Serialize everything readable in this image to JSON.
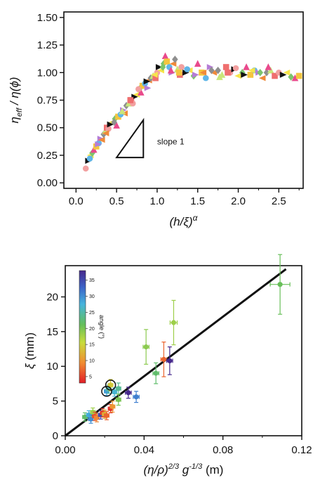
{
  "chart_data": [
    {
      "type": "scatter",
      "title": "",
      "xlabel": "(h/ξ)^α",
      "ylabel": "η_eff / η(φ)",
      "xlim": [
        -0.15,
        2.8
      ],
      "ylim": [
        -0.05,
        1.55
      ],
      "xticks": [
        "0.0",
        "0.5",
        "1.0",
        "1.5",
        "2.0",
        "2.5"
      ],
      "yticks": [
        "0.00",
        "0.25",
        "0.50",
        "0.75",
        "1.00",
        "1.25",
        "1.50"
      ],
      "grid": false,
      "legend": "none",
      "annotation": {
        "text": "slope 1",
        "triangle": {
          "x": [
            0.5,
            0.83,
            0.83
          ],
          "y": [
            0.23,
            0.23,
            0.57
          ]
        }
      },
      "series": [
        {
          "x": [
            0.12,
            0.15,
            0.18,
            0.2,
            0.22,
            0.25,
            0.28,
            0.3,
            0.32,
            0.34,
            0.36,
            0.38,
            0.4,
            0.42,
            0.45,
            0.48,
            0.5,
            0.52,
            0.55,
            0.58,
            0.6,
            0.62,
            0.65,
            0.68,
            0.7,
            0.72,
            0.75,
            0.78,
            0.8,
            0.82,
            0.85,
            0.88,
            0.9,
            0.92,
            0.95,
            0.98,
            1.0,
            1.02,
            1.05,
            1.08,
            1.1,
            1.12,
            1.15,
            1.18,
            1.2,
            1.22,
            1.25,
            1.28,
            1.3,
            1.35,
            1.4,
            1.45,
            1.5,
            1.55,
            1.6,
            1.65,
            1.7,
            1.75,
            1.8,
            1.85,
            1.9,
            1.95,
            2.0,
            2.05,
            2.1,
            2.15,
            2.2,
            2.25,
            2.3,
            2.35,
            2.4,
            2.45,
            2.5,
            2.55,
            2.6,
            2.65,
            2.7,
            2.75,
            0.17,
            0.27,
            0.37,
            0.47,
            0.57,
            0.67,
            0.77,
            0.87,
            0.97,
            1.07,
            1.17,
            1.27,
            1.37,
            1.47,
            1.57,
            1.67,
            1.77,
            1.87,
            1.97,
            2.07,
            2.17,
            2.27,
            2.37
          ],
          "y": [
            0.13,
            0.2,
            0.25,
            0.27,
            0.3,
            0.33,
            0.36,
            0.4,
            0.39,
            0.44,
            0.47,
            0.5,
            0.49,
            0.53,
            0.55,
            0.58,
            0.52,
            0.6,
            0.62,
            0.66,
            0.63,
            0.7,
            0.72,
            0.75,
            0.72,
            0.78,
            0.8,
            0.85,
            0.82,
            0.88,
            0.9,
            0.86,
            0.93,
            0.95,
            0.97,
            0.95,
            1.0,
            1.05,
            1.02,
            1.08,
            1.15,
            1.1,
            1.05,
            1.0,
            1.08,
            1.12,
            1.03,
            0.98,
            1.05,
            1.0,
            1.02,
            0.97,
            1.08,
            1.0,
            0.95,
            1.05,
            1.0,
            1.02,
            0.98,
            1.05,
            1.0,
            1.03,
            0.97,
            1.0,
            1.05,
            0.98,
            1.02,
            1.0,
            0.95,
            1.0,
            1.02,
            0.97,
            1.0,
            0.98,
            1.0,
            0.96,
            0.95,
            0.97,
            0.22,
            0.35,
            0.45,
            0.55,
            0.65,
            0.75,
            0.85,
            0.92,
            0.98,
            1.05,
            1.02,
            1.0,
            1.03,
            0.98,
            1.0,
            1.02,
            0.96,
            1.0,
            1.04,
            0.98,
            1.02,
            1.0,
            1.05
          ]
        }
      ]
    },
    {
      "type": "scatter",
      "title": "",
      "xlabel": "(η/ρ)^2/3 g^-1/3 (m)",
      "ylabel": "ξ (mm)",
      "xlim": [
        0.0,
        0.12
      ],
      "ylim": [
        0.0,
        24.5
      ],
      "xticks": [
        "0.00",
        "0.04",
        "0.08",
        "0.12"
      ],
      "yticks": [
        "0",
        "5",
        "10",
        "15",
        "20"
      ],
      "grid": false,
      "legend": "none",
      "colorbar": {
        "label": "angle (°)",
        "ticks": [
          "5",
          "10",
          "15",
          "20",
          "25",
          "30",
          "35"
        ],
        "range": [
          3,
          38
        ]
      },
      "fit_line": {
        "x": [
          0.0,
          0.112
        ],
        "y": [
          0.0,
          24.0
        ]
      },
      "points": [
        {
          "x": 0.01,
          "y": 2.7,
          "xerr": 0.0012,
          "yerr": 0.6,
          "angle": 22
        },
        {
          "x": 0.012,
          "y": 3.0,
          "xerr": 0.0012,
          "yerr": 0.6,
          "angle": 28
        },
        {
          "x": 0.013,
          "y": 2.4,
          "xerr": 0.0012,
          "yerr": 0.6,
          "angle": 30
        },
        {
          "x": 0.014,
          "y": 3.4,
          "xerr": 0.0012,
          "yerr": 0.6,
          "angle": 18
        },
        {
          "x": 0.015,
          "y": 2.8,
          "xerr": 0.0012,
          "yerr": 0.6,
          "angle": 6
        },
        {
          "x": 0.016,
          "y": 2.6,
          "xerr": 0.0012,
          "yerr": 0.6,
          "angle": 9
        },
        {
          "x": 0.018,
          "y": 3.0,
          "xerr": 0.0012,
          "yerr": 0.6,
          "angle": 35
        },
        {
          "x": 0.019,
          "y": 3.3,
          "xerr": 0.0012,
          "yerr": 0.6,
          "angle": 5
        },
        {
          "x": 0.02,
          "y": 3.1,
          "xerr": 0.0012,
          "yerr": 0.6,
          "angle": 12
        },
        {
          "x": 0.021,
          "y": 2.9,
          "xerr": 0.0012,
          "yerr": 0.6,
          "angle": 7
        },
        {
          "x": 0.023,
          "y": 3.9,
          "xerr": 0.0012,
          "yerr": 0.6,
          "angle": 4
        },
        {
          "x": 0.024,
          "y": 4.2,
          "xerr": 0.0012,
          "yerr": 0.8,
          "angle": 10
        },
        {
          "x": 0.021,
          "y": 6.4,
          "xerr": 0.0012,
          "yerr": 0.6,
          "angle": 29
        },
        {
          "x": 0.022,
          "y": 6.7,
          "xerr": 0.0012,
          "yerr": 0.6,
          "angle": 25
        },
        {
          "x": 0.023,
          "y": 7.3,
          "xerr": 0.0012,
          "yerr": 0.8,
          "angle": 14
        },
        {
          "x": 0.025,
          "y": 6.3,
          "xerr": 0.0012,
          "yerr": 0.6,
          "angle": 27
        },
        {
          "x": 0.027,
          "y": 6.8,
          "xerr": 0.0012,
          "yerr": 0.8,
          "angle": 24
        },
        {
          "x": 0.027,
          "y": 5.2,
          "xerr": 0.0012,
          "yerr": 0.8,
          "angle": 20
        },
        {
          "x": 0.032,
          "y": 6.2,
          "xerr": 0.0015,
          "yerr": 0.8,
          "angle": 38
        },
        {
          "x": 0.036,
          "y": 5.6,
          "xerr": 0.0015,
          "yerr": 0.8,
          "angle": 31
        },
        {
          "x": 0.041,
          "y": 12.8,
          "xerr": 0.0015,
          "yerr": 2.5,
          "angle": 19
        },
        {
          "x": 0.046,
          "y": 9.0,
          "xerr": 0.0015,
          "yerr": 1.5,
          "angle": 22
        },
        {
          "x": 0.05,
          "y": 11.0,
          "xerr": 0.0015,
          "yerr": 2.5,
          "angle": 7
        },
        {
          "x": 0.053,
          "y": 10.8,
          "xerr": 0.0015,
          "yerr": 2.0,
          "angle": 38
        },
        {
          "x": 0.055,
          "y": 16.3,
          "xerr": 0.0018,
          "yerr": 3.2,
          "angle": 18
        },
        {
          "x": 0.109,
          "y": 21.8,
          "xerr": 0.005,
          "yerr": 4.3,
          "angle": 21
        }
      ],
      "circled": [
        {
          "x": 0.021,
          "y": 6.4
        },
        {
          "x": 0.023,
          "y": 7.3
        }
      ]
    }
  ]
}
